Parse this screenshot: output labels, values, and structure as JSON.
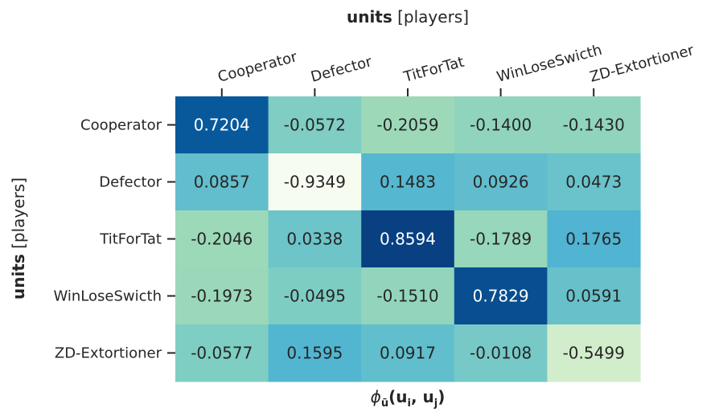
{
  "chart_data": {
    "type": "heatmap",
    "top_axis_label_bold": "units",
    "top_axis_label_rest": " [players]",
    "left_axis_label_bold": "units",
    "left_axis_label_rest": " [players]",
    "xlabel_text": "ϕ",
    "rows": [
      "Cooperator",
      "Defector",
      "TitForTat",
      "WinLoseSwicth",
      "ZD-Extortioner"
    ],
    "columns": [
      "Cooperator",
      "Defector",
      "TitForTat",
      "WinLoseSwicth",
      "ZD-Extortioner"
    ],
    "values": [
      [
        0.7204,
        -0.0572,
        -0.2059,
        -0.14,
        -0.143
      ],
      [
        0.0857,
        -0.9349,
        0.1483,
        0.0926,
        0.0473
      ],
      [
        -0.2046,
        0.0338,
        0.8594,
        -0.1789,
        0.1765
      ],
      [
        -0.1973,
        -0.0495,
        -0.151,
        0.7829,
        0.0591
      ],
      [
        -0.0577,
        0.1595,
        0.0917,
        -0.0108,
        -0.5499
      ]
    ],
    "value_labels": [
      [
        "0.7204",
        "-0.0572",
        "-0.2059",
        "-0.1400",
        "-0.1430"
      ],
      [
        "0.0857",
        "-0.9349",
        "0.1483",
        "0.0926",
        "0.0473"
      ],
      [
        "-0.2046",
        "0.0338",
        "0.8594",
        "-0.1789",
        "0.1765"
      ],
      [
        "-0.1973",
        "-0.0495",
        "-0.1510",
        "0.7829",
        "0.0591"
      ],
      [
        "-0.0577",
        "0.1595",
        "0.0917",
        "-0.0108",
        "-0.5499"
      ]
    ],
    "colormap": "GnBu",
    "vmin": -0.9349,
    "vmax": 0.8594,
    "colorbar": false,
    "grid": false
  }
}
